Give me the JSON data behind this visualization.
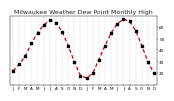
{
  "title": "Milwaukee Weather Dew Point Monthly High",
  "x_values": [
    1,
    2,
    3,
    4,
    5,
    6,
    7,
    8,
    9,
    10,
    11,
    12,
    13,
    14,
    15,
    16,
    17,
    18,
    19,
    20,
    21,
    22,
    23,
    24
  ],
  "y_values": [
    22,
    28,
    35,
    46,
    55,
    62,
    66,
    64,
    56,
    44,
    30,
    18,
    16,
    20,
    32,
    44,
    55,
    63,
    67,
    65,
    57,
    44,
    30,
    20
  ],
  "x_tick_labels": [
    "J",
    "F",
    "M",
    "A",
    "M",
    "J",
    "J",
    "A",
    "S",
    "O",
    "N",
    "D",
    "J",
    "F",
    "M",
    "A",
    "M",
    "J",
    "J",
    "A",
    "S",
    "O",
    "N",
    "D"
  ],
  "line_color": "#cc0000",
  "marker_color": "#000000",
  "grid_color": "#888888",
  "background_color": "#ffffff",
  "ylim": [
    10,
    70
  ],
  "yticks": [
    20,
    30,
    40,
    50,
    60
  ],
  "title_fontsize": 4.5,
  "tick_fontsize": 3.0,
  "line_width": 0.9,
  "marker_size": 1.8
}
